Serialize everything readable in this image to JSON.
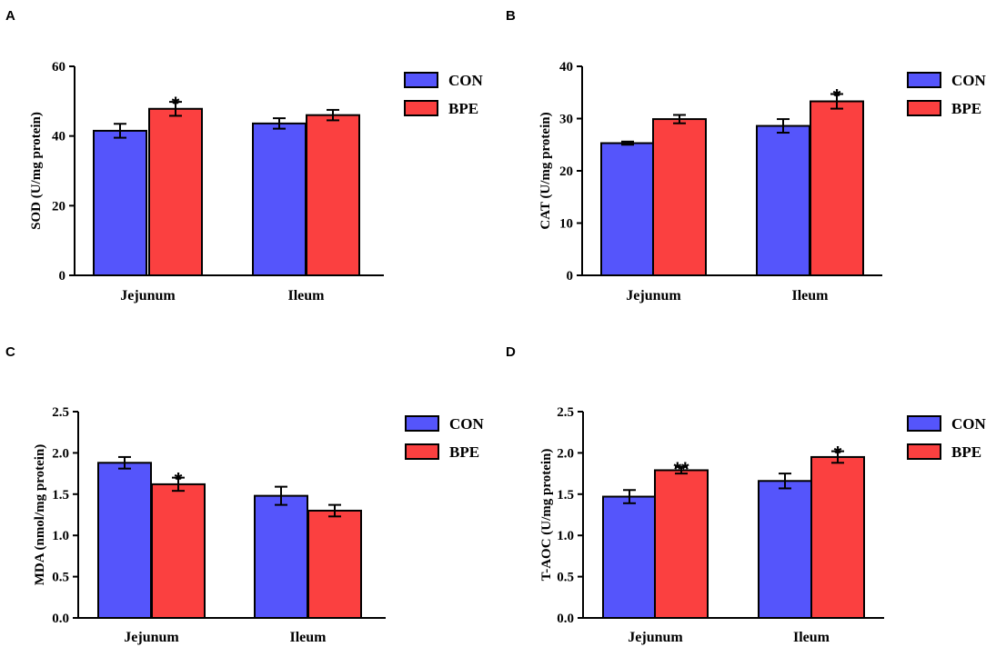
{
  "colors": {
    "CON": "#5555fb",
    "BPE": "#fb4040"
  },
  "legend": [
    "CON",
    "BPE"
  ],
  "chart_data": [
    {
      "panel": "A",
      "type": "bar",
      "ylabel": "SOD (U/mg protein)",
      "categories": [
        "Jejunum",
        "Ileum"
      ],
      "ylim": [
        0,
        60
      ],
      "yticks": [
        0,
        20,
        40,
        60
      ],
      "ytick_labels": [
        "0",
        "20",
        "40",
        "60"
      ],
      "series": [
        {
          "name": "CON",
          "values": [
            41.5,
            43.6
          ],
          "errors": [
            2.0,
            1.5
          ],
          "significance": [
            "",
            ""
          ]
        },
        {
          "name": "BPE",
          "values": [
            47.8,
            46.0
          ],
          "errors": [
            2.0,
            1.5
          ],
          "significance": [
            "*",
            ""
          ]
        }
      ]
    },
    {
      "panel": "B",
      "type": "bar",
      "ylabel": "CAT (U/mg protein)",
      "categories": [
        "Jejunum",
        "Ileum"
      ],
      "ylim": [
        0,
        40
      ],
      "yticks": [
        0,
        10,
        20,
        30,
        40
      ],
      "ytick_labels": [
        "0",
        "10",
        "20",
        "30",
        "40"
      ],
      "series": [
        {
          "name": "CON",
          "values": [
            25.3,
            28.6
          ],
          "errors": [
            0.3,
            1.3
          ],
          "significance": [
            "",
            ""
          ]
        },
        {
          "name": "BPE",
          "values": [
            29.9,
            33.3
          ],
          "errors": [
            0.8,
            1.4
          ],
          "significance": [
            "",
            "*"
          ]
        }
      ]
    },
    {
      "panel": "C",
      "type": "bar",
      "ylabel": "MDA (nmol/mg protein)",
      "categories": [
        "Jejunum",
        "Ileum"
      ],
      "ylim": [
        0,
        2.5
      ],
      "yticks": [
        0,
        0.5,
        1.0,
        1.5,
        2.0,
        2.5
      ],
      "ytick_labels": [
        "0.0",
        "0.5",
        "1.0",
        "1.5",
        "2.0",
        "2.5"
      ],
      "series": [
        {
          "name": "CON",
          "values": [
            1.88,
            1.48
          ],
          "errors": [
            0.07,
            0.11
          ],
          "significance": [
            "",
            ""
          ]
        },
        {
          "name": "BPE",
          "values": [
            1.62,
            1.3
          ],
          "errors": [
            0.08,
            0.07
          ],
          "significance": [
            "*",
            ""
          ]
        }
      ]
    },
    {
      "panel": "D",
      "type": "bar",
      "ylabel": "T-AOC (U/mg protein)",
      "categories": [
        "Jejunum",
        "Ileum"
      ],
      "ylim": [
        0,
        2.5
      ],
      "yticks": [
        0,
        0.5,
        1.0,
        1.5,
        2.0,
        2.5
      ],
      "ytick_labels": [
        "0.0",
        "0.5",
        "1.0",
        "1.5",
        "2.0",
        "2.5"
      ],
      "series": [
        {
          "name": "CON",
          "values": [
            1.47,
            1.66
          ],
          "errors": [
            0.08,
            0.09
          ],
          "significance": [
            "",
            ""
          ]
        },
        {
          "name": "BPE",
          "values": [
            1.79,
            1.95
          ],
          "errors": [
            0.04,
            0.07
          ],
          "significance": [
            "**",
            "*"
          ]
        }
      ]
    }
  ]
}
